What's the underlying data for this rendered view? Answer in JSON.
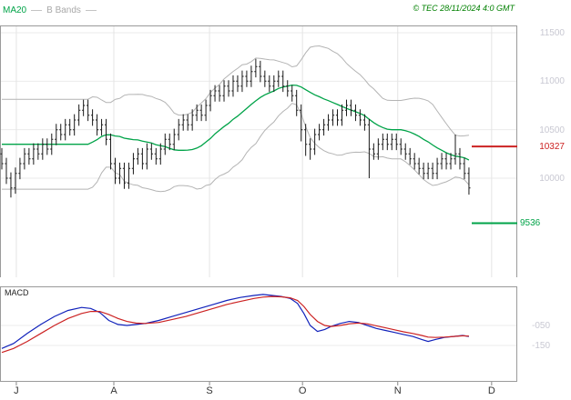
{
  "header": {
    "ma20_label": "MA20",
    "bbands_label": "B Bands",
    "copyright": "© TEC 28/11/2024 4:0 GMT"
  },
  "macd": {
    "label": "MACD",
    "ticks": [
      {
        "label": "-050",
        "value": -50
      },
      {
        "label": "-150",
        "value": -150
      }
    ]
  },
  "x_axis": {
    "months": [
      {
        "label": "J",
        "i": 3.2
      },
      {
        "label": "A",
        "i": 24.7
      },
      {
        "label": "S",
        "i": 45.8
      },
      {
        "label": "O",
        "i": 66.3
      },
      {
        "label": "N",
        "i": 87.3
      },
      {
        "label": "D",
        "i": 108
      }
    ]
  },
  "colors": {
    "ma_green": "#00A348",
    "bbands_gray": "#A8A8A8",
    "copyright_green": "#008000",
    "band_gray": "#B4B4B4",
    "bar_black": "#1A1A1A",
    "marker_red": "#CC2222",
    "support_green": "#00A348",
    "macd_blue": "#1122BB",
    "macd_red": "#CC2222",
    "tick_gray": "#C8C8D2",
    "month_label": "#333333",
    "grid": "#EBEBEB",
    "grid_vertical": "#E4E4E4",
    "panel_border": "#9A9A9A"
  },
  "chart_data": [
    {
      "type": "candlestick",
      "name": "price_panel",
      "overlays": [
        "MA20",
        "Bollinger Bands (20, 2 sigma)"
      ],
      "ylim": [
        8800,
        11600
      ],
      "y_ticks": [
        11500,
        11000,
        10500,
        10000
      ],
      "levels": [
        {
          "label": "10327",
          "value": 10327,
          "color": "#CC2222",
          "role": "resistance"
        },
        {
          "label": "9536",
          "value": 9536,
          "color": "#00A348",
          "role": "support"
        }
      ],
      "ohlc": [
        [
          10250,
          10310,
          10090,
          10150
        ],
        [
          10150,
          10210,
          9940,
          10000
        ],
        [
          10000,
          10060,
          9800,
          9900
        ],
        [
          9900,
          10110,
          9840,
          10050
        ],
        [
          10050,
          10210,
          9990,
          10150
        ],
        [
          10150,
          10310,
          10090,
          10250
        ],
        [
          10250,
          10310,
          10140,
          10200
        ],
        [
          10200,
          10360,
          10140,
          10300
        ],
        [
          10300,
          10360,
          10190,
          10250
        ],
        [
          10250,
          10410,
          10190,
          10350
        ],
        [
          10350,
          10410,
          10240,
          10300
        ],
        [
          10300,
          10460,
          10240,
          10400
        ],
        [
          10400,
          10560,
          10340,
          10500
        ],
        [
          10500,
          10560,
          10390,
          10450
        ],
        [
          10450,
          10610,
          10390,
          10550
        ],
        [
          10550,
          10610,
          10440,
          10500
        ],
        [
          10500,
          10660,
          10440,
          10600
        ],
        [
          10600,
          10760,
          10540,
          10700
        ],
        [
          10700,
          10810,
          10640,
          10750
        ],
        [
          10750,
          10810,
          10590,
          10650
        ],
        [
          10650,
          10710,
          10540,
          10600
        ],
        [
          10600,
          10660,
          10440,
          10500
        ],
        [
          10500,
          10610,
          10440,
          10550
        ],
        [
          10550,
          10610,
          10340,
          10400
        ],
        [
          10400,
          10460,
          10090,
          10150
        ],
        [
          10150,
          10210,
          9940,
          10000
        ],
        [
          10000,
          10160,
          9940,
          10100
        ],
        [
          10100,
          10160,
          9890,
          9950
        ],
        [
          9950,
          10160,
          9890,
          10100
        ],
        [
          10100,
          10260,
          10040,
          10200
        ],
        [
          10200,
          10310,
          10140,
          10250
        ],
        [
          10250,
          10310,
          10090,
          10150
        ],
        [
          10150,
          10360,
          10090,
          10300
        ],
        [
          10300,
          10360,
          10190,
          10250
        ],
        [
          10250,
          10310,
          10140,
          10200
        ],
        [
          10200,
          10360,
          10140,
          10300
        ],
        [
          10300,
          10460,
          10240,
          10400
        ],
        [
          10400,
          10460,
          10290,
          10350
        ],
        [
          10350,
          10510,
          10290,
          10450
        ],
        [
          10450,
          10610,
          10390,
          10550
        ],
        [
          10550,
          10660,
          10490,
          10600
        ],
        [
          10600,
          10660,
          10490,
          10550
        ],
        [
          10550,
          10710,
          10490,
          10650
        ],
        [
          10650,
          10760,
          10590,
          10700
        ],
        [
          10700,
          10760,
          10590,
          10650
        ],
        [
          10650,
          10810,
          10590,
          10750
        ],
        [
          10750,
          10910,
          10690,
          10850
        ],
        [
          10850,
          10960,
          10790,
          10900
        ],
        [
          10900,
          10960,
          10790,
          10850
        ],
        [
          10850,
          11010,
          10790,
          10950
        ],
        [
          10950,
          11010,
          10840,
          10900
        ],
        [
          10900,
          11060,
          10840,
          11000
        ],
        [
          11000,
          11060,
          10890,
          10950
        ],
        [
          10950,
          11110,
          10890,
          11050
        ],
        [
          11050,
          11110,
          10940,
          11000
        ],
        [
          11000,
          11160,
          10940,
          11100
        ],
        [
          11100,
          11230,
          11040,
          11150
        ],
        [
          11150,
          11210,
          10990,
          11050
        ],
        [
          11050,
          11110,
          10940,
          11000
        ],
        [
          11000,
          11060,
          10890,
          10950
        ],
        [
          10950,
          11060,
          10890,
          11000
        ],
        [
          11000,
          11110,
          10940,
          11050
        ],
        [
          11050,
          11110,
          10890,
          10950
        ],
        [
          10950,
          11010,
          10840,
          10900
        ],
        [
          10900,
          10960,
          10790,
          10850
        ],
        [
          10850,
          10910,
          10640,
          10700
        ],
        [
          10700,
          10760,
          10380,
          10500
        ],
        [
          10500,
          10560,
          10230,
          10350
        ],
        [
          10350,
          10410,
          10190,
          10300
        ],
        [
          10300,
          10510,
          10240,
          10450
        ],
        [
          10450,
          10560,
          10390,
          10500
        ],
        [
          10500,
          10610,
          10440,
          10550
        ],
        [
          10550,
          10660,
          10490,
          10600
        ],
        [
          10600,
          10710,
          10540,
          10650
        ],
        [
          10650,
          10710,
          10540,
          10600
        ],
        [
          10600,
          10760,
          10540,
          10700
        ],
        [
          10700,
          10810,
          10640,
          10750
        ],
        [
          10750,
          10810,
          10640,
          10700
        ],
        [
          10700,
          10760,
          10590,
          10650
        ],
        [
          10650,
          10710,
          10540,
          10600
        ],
        [
          10600,
          10660,
          10490,
          10550
        ],
        [
          10550,
          10610,
          10000,
          10300
        ],
        [
          10300,
          10360,
          10190,
          10250
        ],
        [
          10250,
          10410,
          10190,
          10350
        ],
        [
          10350,
          10460,
          10290,
          10400
        ],
        [
          10400,
          10460,
          10290,
          10350
        ],
        [
          10350,
          10460,
          10290,
          10400
        ],
        [
          10400,
          10460,
          10290,
          10350
        ],
        [
          10350,
          10410,
          10240,
          10300
        ],
        [
          10300,
          10360,
          10190,
          10250
        ],
        [
          10250,
          10310,
          10140,
          10200
        ],
        [
          10200,
          10260,
          10090,
          10150
        ],
        [
          10150,
          10210,
          10040,
          10100
        ],
        [
          10100,
          10160,
          9990,
          10050
        ],
        [
          10050,
          10160,
          9990,
          10100
        ],
        [
          10100,
          10160,
          9990,
          10050
        ],
        [
          10050,
          10210,
          9990,
          10150
        ],
        [
          10150,
          10260,
          10090,
          10200
        ],
        [
          10200,
          10260,
          10090,
          10150
        ],
        [
          10150,
          10260,
          10090,
          10200
        ],
        [
          10200,
          10450,
          10140,
          10250
        ],
        [
          10250,
          10310,
          10090,
          10150
        ],
        [
          10150,
          10210,
          9990,
          10050
        ],
        [
          10050,
          10110,
          9830,
          9900
        ]
      ]
    },
    {
      "type": "line",
      "name": "macd_panel",
      "ylim": [
        -330,
        145
      ],
      "y_ticks": [
        -50,
        -150
      ],
      "series": [
        {
          "name": "MACD",
          "color": "#1122BB",
          "points": [
            [
              0,
              -165
            ],
            [
              2.6,
              -140
            ],
            [
              5.6,
              -90
            ],
            [
              8.6,
              -45
            ],
            [
              11.6,
              -5
            ],
            [
              14.6,
              25
            ],
            [
              17.6,
              40
            ],
            [
              19.6,
              35
            ],
            [
              21.6,
              15
            ],
            [
              23.6,
              -25
            ],
            [
              25.6,
              -45
            ],
            [
              27.6,
              -50
            ],
            [
              29.6,
              -45
            ],
            [
              31.6,
              -40
            ],
            [
              34.6,
              -25
            ],
            [
              37.6,
              -5
            ],
            [
              40.6,
              15
            ],
            [
              43.6,
              35
            ],
            [
              46.6,
              55
            ],
            [
              49.6,
              75
            ],
            [
              52.6,
              90
            ],
            [
              55.6,
              100
            ],
            [
              57.6,
              105
            ],
            [
              59.6,
              100
            ],
            [
              61.6,
              95
            ],
            [
              63.6,
              85
            ],
            [
              65.2,
              60
            ],
            [
              66.6,
              10
            ],
            [
              68,
              -50
            ],
            [
              69.6,
              -80
            ],
            [
              71.2,
              -70
            ],
            [
              72.6,
              -55
            ],
            [
              74.6,
              -40
            ],
            [
              76.6,
              -30
            ],
            [
              78.6,
              -35
            ],
            [
              80.6,
              -50
            ],
            [
              82.6,
              -65
            ],
            [
              84.6,
              -75
            ],
            [
              86.6,
              -85
            ],
            [
              88.6,
              -95
            ],
            [
              90.6,
              -105
            ],
            [
              92.6,
              -120
            ],
            [
              94,
              -130
            ],
            [
              95.6,
              -120
            ],
            [
              97.6,
              -110
            ],
            [
              99.6,
              -105
            ],
            [
              101.6,
              -100
            ],
            [
              103,
              -105
            ]
          ]
        },
        {
          "name": "Signal",
          "color": "#CC2222",
          "points": [
            [
              0,
              -185
            ],
            [
              2.6,
              -165
            ],
            [
              5.6,
              -130
            ],
            [
              8.6,
              -90
            ],
            [
              11.6,
              -50
            ],
            [
              14.6,
              -15
            ],
            [
              17.6,
              10
            ],
            [
              19.6,
              20
            ],
            [
              21.6,
              20
            ],
            [
              23.6,
              5
            ],
            [
              25.6,
              -15
            ],
            [
              27.6,
              -30
            ],
            [
              29.6,
              -38
            ],
            [
              31.6,
              -40
            ],
            [
              34.6,
              -35
            ],
            [
              37.6,
              -20
            ],
            [
              40.6,
              -5
            ],
            [
              43.6,
              15
            ],
            [
              46.6,
              35
            ],
            [
              49.6,
              55
            ],
            [
              52.6,
              70
            ],
            [
              55.6,
              85
            ],
            [
              57.6,
              92
            ],
            [
              59.6,
              95
            ],
            [
              61.6,
              93
            ],
            [
              63.6,
              88
            ],
            [
              65.2,
              75
            ],
            [
              66.6,
              45
            ],
            [
              68,
              5
            ],
            [
              69.6,
              -30
            ],
            [
              71.2,
              -50
            ],
            [
              72.6,
              -55
            ],
            [
              74.6,
              -50
            ],
            [
              76.6,
              -42
            ],
            [
              78.6,
              -38
            ],
            [
              80.6,
              -42
            ],
            [
              82.6,
              -52
            ],
            [
              84.6,
              -62
            ],
            [
              86.6,
              -72
            ],
            [
              88.6,
              -82
            ],
            [
              90.6,
              -90
            ],
            [
              92.6,
              -100
            ],
            [
              94,
              -108
            ],
            [
              95.6,
              -110
            ],
            [
              97.6,
              -108
            ],
            [
              99.6,
              -105
            ],
            [
              101.6,
              -102
            ],
            [
              103,
              -103
            ]
          ]
        }
      ]
    }
  ]
}
